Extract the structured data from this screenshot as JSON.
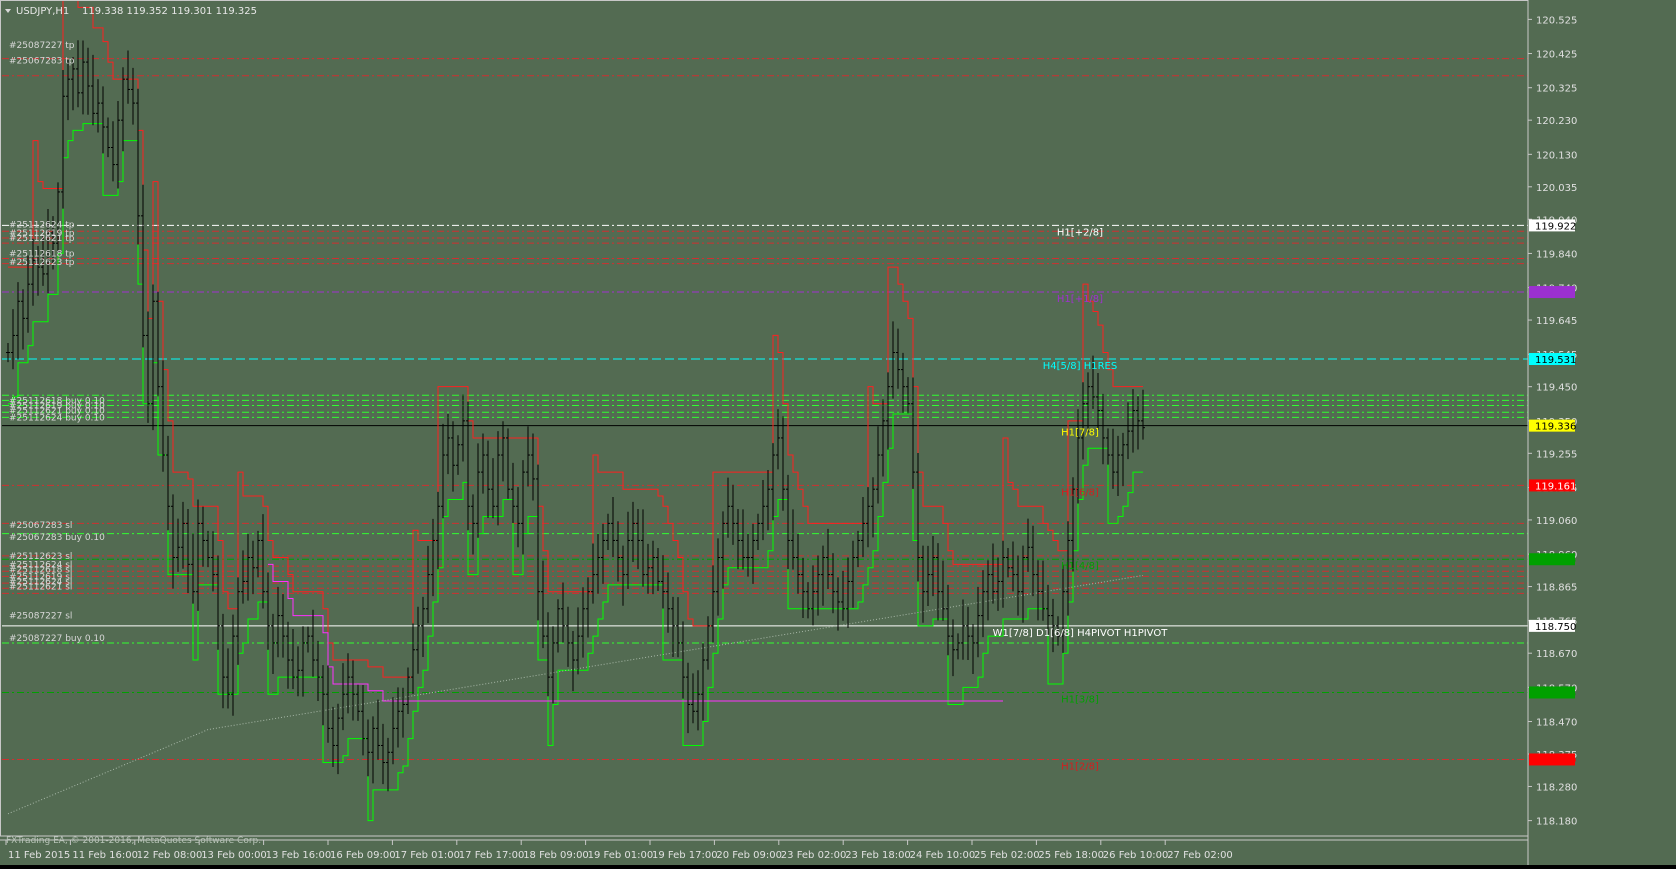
{
  "symbol_header": {
    "symbol": "USDJPY,H1",
    "ohlc": "119.338 119.352 119.301 119.325"
  },
  "copyright": "FXTrading EA, © 2001-2016, MetaQuotes Software Corp.",
  "colors": {
    "background": "#536b52",
    "axis_bg": "#536b52",
    "candle": "#000000",
    "green_line": "#00ff00",
    "red_line": "#ff2020",
    "magenta_line": "#ff30ff",
    "white_level": "#ffffff",
    "dotted_ma": "#a8b8a8"
  },
  "chart_data": {
    "type": "candlestick",
    "ylim": [
      118.135,
      120.57
    ],
    "y_ticks": [
      "120.525",
      "120.425",
      "120.325",
      "120.230",
      "120.130",
      "120.035",
      "119.940",
      "119.840",
      "119.740",
      "119.645",
      "119.545",
      "119.450",
      "119.350",
      "119.255",
      "119.155",
      "119.060",
      "118.960",
      "118.865",
      "118.765",
      "118.670",
      "118.570",
      "118.470",
      "118.375",
      "118.280",
      "118.180"
    ],
    "x_ticks": [
      "11 Feb 2015",
      "11 Feb 16:00",
      "12 Feb 08:00",
      "13 Feb 00:00",
      "13 Feb 16:00",
      "16 Feb 09:00",
      "17 Feb 01:00",
      "17 Feb 17:00",
      "18 Feb 09:00",
      "19 Feb 01:00",
      "19 Feb 17:00",
      "20 Feb 09:00",
      "23 Feb 02:00",
      "23 Feb 18:00",
      "24 Feb 10:00",
      "25 Feb 02:00",
      "25 Feb 18:00",
      "26 Feb 10:00",
      "27 Feb 02:00"
    ],
    "price_badges": [
      {
        "label": "119.922",
        "value": 119.922,
        "bg": "#ffffff",
        "fg": "#000000"
      },
      {
        "label": "119.727",
        "value": 119.727,
        "bg": "#9b30d0",
        "fg": "#9b30d0"
      },
      {
        "label": "119.531",
        "value": 119.531,
        "bg": "#00ffff",
        "fg": "#000000"
      },
      {
        "label": "119.336",
        "value": 119.336,
        "bg": "#ffff00",
        "fg": "#000000"
      },
      {
        "label": "119.161",
        "value": 119.161,
        "bg": "#ff0000",
        "fg": "#ffffff"
      },
      {
        "label": "118.945",
        "value": 118.945,
        "bg": "#00a000",
        "fg": "#00a000"
      },
      {
        "label": "118.750",
        "value": 118.75,
        "bg": "#ffffff",
        "fg": "#000000"
      },
      {
        "label": "118.555",
        "value": 118.555,
        "bg": "#00a000",
        "fg": "#00a000"
      },
      {
        "label": "118.359",
        "value": 118.359,
        "bg": "#ff0000",
        "fg": "#ff0000"
      }
    ],
    "levels": [
      {
        "value": 120.41,
        "color": "#d03030",
        "dash": "7,3,2,3"
      },
      {
        "value": 120.36,
        "color": "#d03030",
        "dash": "7,3,2,3"
      },
      {
        "value": 119.922,
        "color": "#ffffff",
        "dash": "7,3,2,3"
      },
      {
        "value": 119.905,
        "color": "#d03030",
        "dash": "7,3,2,3"
      },
      {
        "value": 119.885,
        "color": "#d03030",
        "dash": "7,3,2,3"
      },
      {
        "value": 119.87,
        "color": "#d03030",
        "dash": "7,3,2,3"
      },
      {
        "value": 119.825,
        "color": "#d03030",
        "dash": "7,3,2,3"
      },
      {
        "value": 119.81,
        "color": "#d03030",
        "dash": "7,3,2,3"
      },
      {
        "value": 119.727,
        "color": "#a030d0",
        "dash": "7,3,2,3"
      },
      {
        "value": 119.531,
        "color": "#00ffff",
        "dash": "9,4"
      },
      {
        "value": 119.425,
        "color": "#30ff30",
        "dash": "7,3,2,3"
      },
      {
        "value": 119.41,
        "color": "#30ff30",
        "dash": "7,3,2,3"
      },
      {
        "value": 119.395,
        "color": "#30ff30",
        "dash": "7,3,2,3"
      },
      {
        "value": 119.375,
        "color": "#30ff30",
        "dash": "7,3,2,3"
      },
      {
        "value": 119.36,
        "color": "#30ff30",
        "dash": "7,3,2,3"
      },
      {
        "value": 119.336,
        "color": "#000000",
        "dash": ""
      },
      {
        "value": 119.161,
        "color": "#d03030",
        "dash": "7,3,2,3"
      },
      {
        "value": 119.05,
        "color": "#d03030",
        "dash": "7,3,2,3"
      },
      {
        "value": 119.02,
        "color": "#30ff30",
        "dash": "7,3,2,3"
      },
      {
        "value": 118.955,
        "color": "#d03030",
        "dash": "7,3,2,3"
      },
      {
        "value": 118.945,
        "color": "#00a000",
        "dash": "7,3,2,3"
      },
      {
        "value": 118.925,
        "color": "#d03030",
        "dash": "7,3,2,3"
      },
      {
        "value": 118.91,
        "color": "#d03030",
        "dash": "7,3,2,3"
      },
      {
        "value": 118.895,
        "color": "#d03030",
        "dash": "7,3,2,3"
      },
      {
        "value": 118.875,
        "color": "#d03030",
        "dash": "7,3,2,3"
      },
      {
        "value": 118.86,
        "color": "#d03030",
        "dash": "7,3,2,3"
      },
      {
        "value": 118.845,
        "color": "#d03030",
        "dash": "7,3,2,3"
      },
      {
        "value": 118.75,
        "color": "#ffffff",
        "dash": ""
      },
      {
        "value": 118.7,
        "color": "#30ff30",
        "dash": "7,3,2,3"
      },
      {
        "value": 118.555,
        "color": "#00a000",
        "dash": "7,3,2,3"
      },
      {
        "value": 118.359,
        "color": "#d03030",
        "dash": "7,3,2,3"
      }
    ],
    "level_labels": [
      {
        "text": "H1[+2/8]",
        "value": 119.922,
        "color": "#ffffff"
      },
      {
        "text": "H1[+1/8]",
        "value": 119.727,
        "color": "#a030d0"
      },
      {
        "text": "H4[5/8] H1RES",
        "value": 119.531,
        "color": "#00ffff"
      },
      {
        "text": "H1[7/8]",
        "value": 119.336,
        "color": "#ffff00"
      },
      {
        "text": "H1[6/8]",
        "value": 119.161,
        "color": "#d02020"
      },
      {
        "text": "H1[4/8]",
        "value": 118.945,
        "color": "#00a000"
      },
      {
        "text": "W1[7/8] D1[6/8] H4PIVOT H1PIVOT",
        "value": 118.75,
        "color": "#ffffff"
      },
      {
        "text": "H1[3/8]",
        "value": 118.555,
        "color": "#00a000"
      },
      {
        "text": "H1[2/8]",
        "value": 118.359,
        "color": "#d02020"
      }
    ],
    "order_labels": [
      {
        "text": "#25087227 tp",
        "value": 120.45
      },
      {
        "text": "#25067283 tp",
        "value": 120.405
      },
      {
        "text": "#25112624 tp",
        "value": 119.925
      },
      {
        "text": "#25112619 tp",
        "value": 119.9
      },
      {
        "text": "#25112621 tp",
        "value": 119.885
      },
      {
        "text": "#25112618 tp",
        "value": 119.84
      },
      {
        "text": "#25112623 tp",
        "value": 119.815
      },
      {
        "text": "#25112618 buy 0.10",
        "value": 119.41
      },
      {
        "text": "#25112619 buy 0.10",
        "value": 119.395
      },
      {
        "text": "#25112621 buy 0.10",
        "value": 119.38
      },
      {
        "text": "#25112624 buy 0.10",
        "value": 119.36
      },
      {
        "text": "#25067283 sl",
        "value": 119.045
      },
      {
        "text": "#25067283 buy 0.10",
        "value": 119.01
      },
      {
        "text": "#25112623 sl",
        "value": 118.955
      },
      {
        "text": "#25112624 sl",
        "value": 118.93
      },
      {
        "text": "#25112618 sl",
        "value": 118.915
      },
      {
        "text": "#25112619 sl",
        "value": 118.895
      },
      {
        "text": "#25112624 sl",
        "value": 118.88
      },
      {
        "text": "#25112621 sl",
        "value": 118.865
      },
      {
        "text": "#25087227 sl",
        "value": 118.78
      },
      {
        "text": "#25087227 buy 0.10",
        "value": 118.715
      }
    ],
    "series_closes": [
      119.55,
      119.6,
      119.7,
      119.65,
      119.75,
      119.82,
      119.8,
      119.78,
      119.9,
      119.87,
      120.02,
      120.3,
      120.35,
      120.38,
      120.31,
      120.4,
      120.33,
      120.25,
      120.28,
      120.21,
      120.15,
      120.1,
      120.23,
      120.35,
      120.32,
      120.28,
      119.95,
      119.6,
      119.4,
      119.7,
      119.45,
      119.25,
      119.1,
      118.95,
      118.98,
      119.05,
      118.93,
      118.85,
      119.05,
      119.0,
      118.95,
      118.9,
      118.75,
      118.6,
      118.55,
      118.72,
      118.85,
      118.88,
      118.95,
      118.92,
      119.0,
      118.85,
      118.75,
      118.7,
      118.78,
      118.72,
      118.65,
      118.6,
      118.62,
      118.7,
      118.72,
      118.65,
      118.6,
      118.55,
      118.45,
      118.4,
      118.48,
      118.55,
      118.6,
      118.55,
      118.5,
      118.42,
      118.38,
      118.45,
      118.4,
      118.35,
      118.38,
      118.45,
      118.5,
      118.52,
      118.6,
      118.68,
      118.75,
      118.8,
      118.9,
      119.0,
      119.1,
      119.25,
      119.3,
      119.22,
      119.28,
      119.35,
      119.1,
      119.05,
      119.2,
      119.25,
      119.15,
      119.1,
      119.25,
      119.3,
      119.15,
      119.1,
      119.05,
      119.2,
      119.25,
      119.18,
      118.85,
      118.72,
      118.6,
      118.7,
      118.8,
      118.75,
      118.7,
      118.65,
      118.72,
      118.8,
      118.85,
      118.9,
      118.95,
      119.0,
      119.05,
      119.0,
      118.95,
      118.9,
      119.0,
      119.05,
      119.0,
      118.9,
      118.92,
      118.95,
      118.88,
      118.85,
      118.8,
      118.75,
      118.7,
      118.6,
      118.52,
      118.5,
      118.55,
      118.65,
      118.75,
      118.85,
      118.95,
      119.05,
      119.1,
      119.05,
      119.0,
      118.95,
      118.95,
      119.0,
      119.05,
      119.1,
      119.15,
      119.25,
      119.3,
      119.15,
      119.0,
      118.95,
      118.9,
      118.85,
      118.8,
      118.85,
      118.9,
      118.95,
      118.9,
      118.85,
      118.82,
      118.8,
      118.88,
      118.95,
      119.0,
      119.05,
      119.1,
      119.15,
      119.25,
      119.35,
      119.45,
      119.55,
      119.5,
      119.45,
      119.4,
      119.2,
      118.95,
      118.85,
      118.9,
      118.95,
      118.85,
      118.8,
      118.72,
      118.68,
      118.7,
      118.75,
      118.72,
      118.7,
      118.78,
      118.85,
      118.9,
      118.85,
      118.88,
      118.95,
      118.92,
      118.9,
      118.85,
      118.95,
      118.98,
      118.9,
      118.85,
      118.8,
      118.78,
      118.75,
      118.72,
      118.85,
      119.0,
      119.15,
      119.3,
      119.4,
      119.45,
      119.42,
      119.38,
      119.3,
      119.25,
      119.2,
      119.25,
      119.28,
      119.32,
      119.38,
      119.35,
      119.33
    ],
    "series_highs_delta": 0.07,
    "green_line_points": [
      [
        0,
        119.35
      ],
      [
        3,
        119.35
      ],
      [
        6,
        119.15
      ],
      [
        10,
        119.55
      ],
      [
        14,
        119.55
      ],
      [
        16,
        119.78
      ],
      [
        20,
        119.78
      ],
      [
        22,
        120.02
      ],
      [
        28,
        120.02
      ],
      [
        30,
        120.05
      ],
      [
        36,
        120.05
      ],
      [
        40,
        120.04
      ],
      [
        48,
        120.04
      ],
      [
        58,
        120.04
      ],
      [
        68,
        120.04
      ],
      [
        78,
        120.04
      ],
      [
        88,
        120.04
      ],
      [
        96,
        120.05
      ],
      [
        100,
        120.05
      ],
      [
        103,
        120.05
      ],
      [
        106,
        120.05
      ],
      [
        110,
        120.08
      ],
      [
        116,
        120.08
      ],
      [
        120,
        120.1
      ],
      [
        125,
        120.1
      ],
      [
        130,
        120.1
      ]
    ],
    "chart_note": "",
    "green_line_label": "",
    "red_line_label": ""
  }
}
